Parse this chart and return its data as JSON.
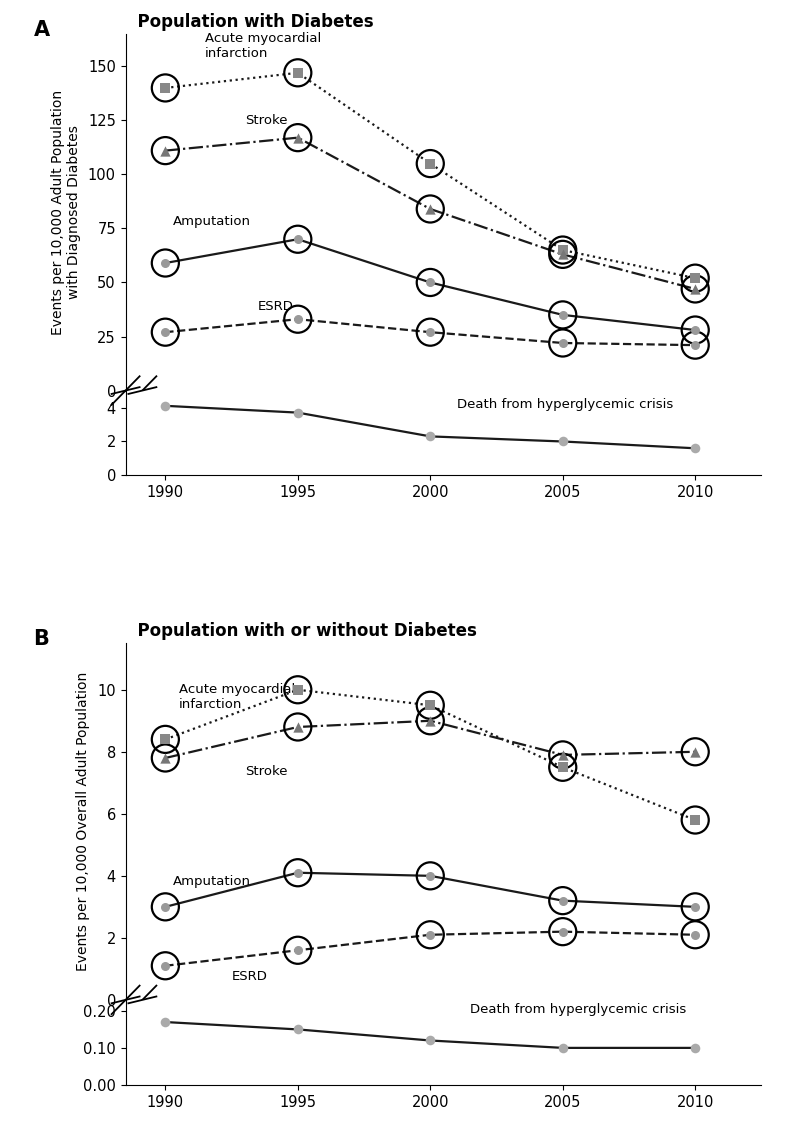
{
  "years": [
    1990,
    1995,
    2000,
    2005,
    2010
  ],
  "panel_A": {
    "title": "Population with Diabetes",
    "ylabel": "Events per 10,000 Adult Population\nwith Diagnosed Diabetes",
    "ami": [
      140,
      147,
      105,
      65,
      52
    ],
    "stroke": [
      111,
      117,
      84,
      63,
      47
    ],
    "amputation": [
      59,
      70,
      50,
      35,
      28
    ],
    "esrd": [
      27,
      33,
      27,
      22,
      21
    ],
    "death": [
      4.1,
      3.7,
      2.3,
      2.0,
      1.6
    ],
    "upper_ylim": [
      0,
      165
    ],
    "upper_yticks": [
      0,
      25,
      50,
      75,
      100,
      125,
      150
    ],
    "lower_ylim": [
      0,
      5
    ],
    "lower_yticks": [
      0,
      2,
      4
    ],
    "ann_ami": [
      1991.5,
      153
    ],
    "ann_stroke": [
      1993.0,
      122
    ],
    "ann_amp": [
      1990.3,
      75
    ],
    "ann_esrd": [
      1993.5,
      36
    ],
    "ann_death": [
      2001.0,
      3.8
    ]
  },
  "panel_B": {
    "title": "Population with or without Diabetes",
    "ylabel": "Events per 10,000 Overall Adult Population",
    "ami": [
      8.4,
      10.0,
      9.5,
      7.5,
      5.8
    ],
    "stroke": [
      7.8,
      8.8,
      9.0,
      7.9,
      8.0
    ],
    "amputation": [
      3.0,
      4.1,
      4.0,
      3.2,
      3.0
    ],
    "esrd": [
      1.1,
      1.6,
      2.1,
      2.2,
      2.1
    ],
    "death": [
      0.17,
      0.15,
      0.12,
      0.1,
      0.1
    ],
    "upper_ylim": [
      0,
      11.5
    ],
    "upper_yticks": [
      0,
      2,
      4,
      6,
      8,
      10
    ],
    "lower_ylim": [
      0.0,
      0.23
    ],
    "lower_yticks": [
      0.0,
      0.1,
      0.2
    ],
    "ann_ami": [
      1990.5,
      9.3
    ],
    "ann_stroke": [
      1993.0,
      7.15
    ],
    "ann_amp": [
      1990.3,
      3.6
    ],
    "ann_esrd": [
      1992.5,
      0.55
    ],
    "ann_death": [
      2001.5,
      0.185
    ]
  }
}
